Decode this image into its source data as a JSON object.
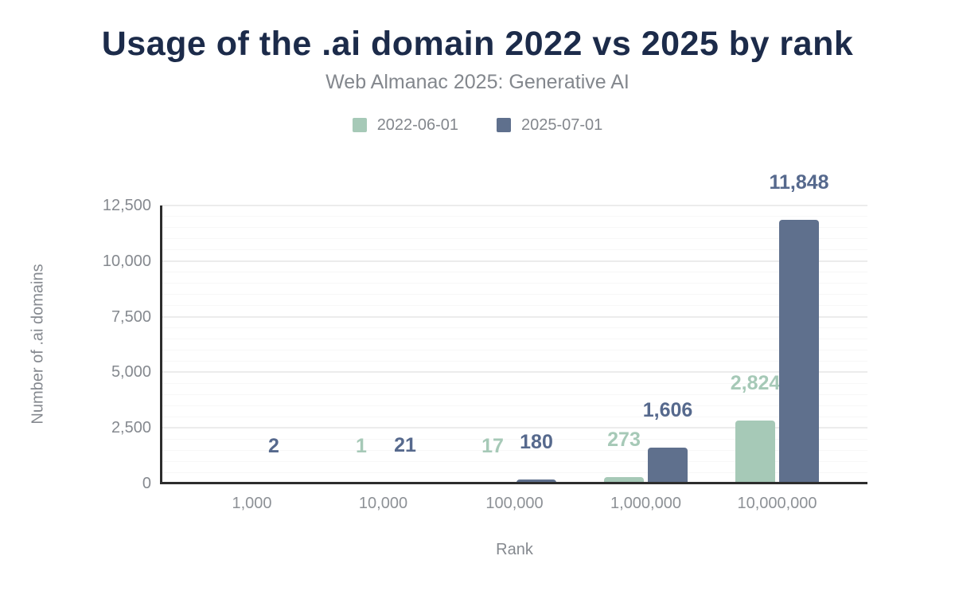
{
  "title": "Usage of the .ai domain 2022 vs 2025 by rank",
  "subtitle": "Web Almanac 2025: Generative AI",
  "legend": [
    {
      "label": "2022-06-01",
      "color": "#a6c9b7"
    },
    {
      "label": "2025-07-01",
      "color": "#5f708d"
    }
  ],
  "colors": {
    "title": "#1c2b4a",
    "axis_text": "#85898f",
    "axis_line": "#2d2d2d",
    "series_2022": "#a6c9b7",
    "series_2025": "#5f708d",
    "label_2025": "#56698d"
  },
  "chart_data": {
    "type": "bar",
    "title": "Usage of the .ai domain 2022 vs 2025 by rank",
    "subtitle": "Web Almanac 2025: Generative AI",
    "xlabel": "Rank",
    "ylabel": "Number of .ai domains",
    "categories": [
      "1,000",
      "10,000",
      "100,000",
      "1,000,000",
      "10,000,000"
    ],
    "series": [
      {
        "name": "2022-06-01",
        "color": "#a6c9b7",
        "label_color": "#a6c9b7",
        "values": [
          0,
          1,
          17,
          273,
          2824
        ],
        "labels": [
          "",
          "1",
          "17",
          "273",
          "2,824"
        ]
      },
      {
        "name": "2025-07-01",
        "color": "#5f708d",
        "label_color": "#56698d",
        "values": [
          2,
          21,
          180,
          1606,
          11848
        ],
        "labels": [
          "2",
          "21",
          "180",
          "1,606",
          "11,848"
        ]
      }
    ],
    "ylim": [
      0,
      12500
    ],
    "yticks": {
      "major_step": 2500,
      "minor_step": 500,
      "labels": [
        "0",
        "2,500",
        "5,000",
        "7,500",
        "10,000",
        "12,500"
      ]
    },
    "grid": "horizontal-minor-and-major",
    "legend_position": "top"
  }
}
